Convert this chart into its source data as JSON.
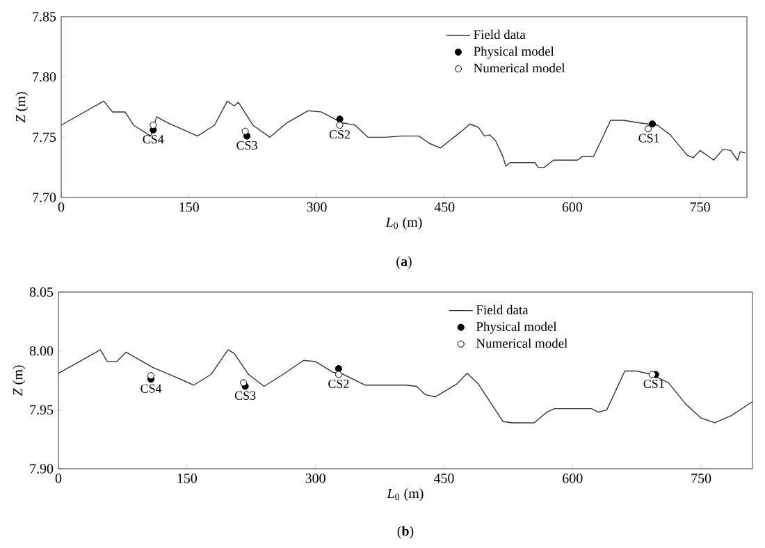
{
  "chart_data": [
    {
      "type": "line",
      "xlabel": "*L*$_{0}$ (m)",
      "ylabel": "*Z* (m)",
      "xlim": [
        0,
        805
      ],
      "ylim": [
        7.7,
        7.85
      ],
      "xticks": [
        0,
        150,
        300,
        450,
        600,
        750
      ],
      "yticks": [
        {
          "value": 7.7,
          "label": "7.70"
        },
        {
          "value": 7.75,
          "label": "7.75"
        },
        {
          "value": 7.8,
          "label": "7.80"
        },
        {
          "value": 7.85,
          "label": "7.85"
        }
      ],
      "legend": "top",
      "grid": false,
      "series": [
        {
          "name": "Field data",
          "color": "#333333",
          "x": [
            0,
            50,
            60,
            75,
            85,
            105,
            112,
            125,
            160,
            180,
            195,
            203,
            208,
            225,
            245,
            265,
            290,
            305,
            330,
            345,
            360,
            380,
            400,
            420,
            432,
            445,
            470,
            480,
            490,
            497,
            503,
            510,
            518,
            522,
            527,
            556,
            560,
            567,
            578,
            606,
            612,
            625,
            645,
            660,
            678,
            700,
            715,
            735,
            742,
            750,
            766,
            777,
            786,
            794,
            797,
            803
          ],
          "values": [
            7.76,
            7.78,
            7.771,
            7.771,
            7.76,
            7.751,
            7.767,
            7.762,
            7.751,
            7.76,
            7.78,
            7.776,
            7.779,
            7.76,
            7.75,
            7.762,
            7.772,
            7.771,
            7.762,
            7.76,
            7.75,
            7.75,
            7.751,
            7.751,
            7.745,
            7.741,
            7.755,
            7.761,
            7.758,
            7.751,
            7.752,
            7.747,
            7.735,
            7.726,
            7.729,
            7.729,
            7.725,
            7.725,
            7.731,
            7.731,
            7.734,
            7.734,
            7.764,
            7.764,
            7.762,
            7.76,
            7.752,
            7.735,
            7.733,
            7.739,
            7.731,
            7.74,
            7.739,
            7.731,
            7.738,
            7.737
          ]
        },
        {
          "name": "Physical model",
          "type": "scatter",
          "marker": "circle",
          "color": "#000000",
          "x": [
            108,
            218,
            327,
            694
          ],
          "values": [
            7.756,
            7.751,
            7.765,
            7.761
          ]
        },
        {
          "name": "Numerical model",
          "type": "scatter",
          "marker": "circle",
          "color": "#ffffff",
          "x": [
            108,
            216,
            327,
            689
          ],
          "values": [
            7.76,
            7.755,
            7.76,
            7.757
          ]
        }
      ],
      "annotations": [
        {
          "text": "CS4",
          "x": 108,
          "y": 7.756
        },
        {
          "text": "CS3",
          "x": 218,
          "y": 7.751
        },
        {
          "text": "CS2",
          "x": 327,
          "y": 7.76
        },
        {
          "text": "CS1",
          "x": 690,
          "y": 7.757
        },
        "(**a**)"
      ]
    },
    {
      "type": "line",
      "xlabel": "*L*$_{0}$ (m)",
      "ylabel": "*Z* (m)",
      "xlim": [
        0,
        810
      ],
      "ylim": [
        7.9,
        8.05
      ],
      "xticks": [
        0,
        150,
        300,
        450,
        600,
        750
      ],
      "yticks": [
        {
          "value": 7.9,
          "label": "7.90"
        },
        {
          "value": 7.95,
          "label": "7.95"
        },
        {
          "value": 8.0,
          "label": "8.00"
        },
        {
          "value": 8.05,
          "label": "8.05"
        }
      ],
      "legend": "top",
      "grid": false,
      "series": [
        {
          "name": "Field data",
          "color": "#333333",
          "x": [
            0,
            49,
            57,
            68,
            79,
            110,
            130,
            158,
            178,
            198,
            205,
            222,
            240,
            262,
            286,
            300,
            320,
            330,
            358,
            405,
            418,
            428,
            440,
            465,
            477,
            490,
            519,
            530,
            555,
            570,
            579,
            622,
            630,
            640,
            661,
            675,
            692,
            712,
            732,
            750,
            766,
            785,
            810
          ],
          "values": [
            7.981,
            8.001,
            7.991,
            7.991,
            7.999,
            7.986,
            7.98,
            7.971,
            7.98,
            8.001,
            7.998,
            7.98,
            7.97,
            7.98,
            7.992,
            7.991,
            7.982,
            7.981,
            7.971,
            7.971,
            7.97,
            7.963,
            7.961,
            7.972,
            7.981,
            7.972,
            7.94,
            7.939,
            7.939,
            7.948,
            7.951,
            7.951,
            7.948,
            7.95,
            7.983,
            7.983,
            7.98,
            7.973,
            7.955,
            7.943,
            7.939,
            7.945,
            7.957
          ]
        },
        {
          "name": "Physical model",
          "type": "scatter",
          "marker": "circle",
          "color": "#000000",
          "x": [
            108,
            218,
            327,
            697
          ],
          "values": [
            7.976,
            7.97,
            7.985,
            7.98
          ]
        },
        {
          "name": "Numerical model",
          "type": "scatter",
          "marker": "circle",
          "color": "#ffffff",
          "x": [
            108,
            216,
            327,
            693
          ],
          "values": [
            7.979,
            7.973,
            7.98,
            7.98
          ]
        }
      ],
      "annotations": [
        {
          "text": "CS4",
          "x": 108,
          "y": 7.976
        },
        {
          "text": "CS3",
          "x": 218,
          "y": 7.97
        },
        {
          "text": "CS2",
          "x": 327,
          "y": 7.98
        },
        {
          "text": "CS1",
          "x": 695,
          "y": 7.98
        },
        "(**b**)"
      ]
    }
  ]
}
